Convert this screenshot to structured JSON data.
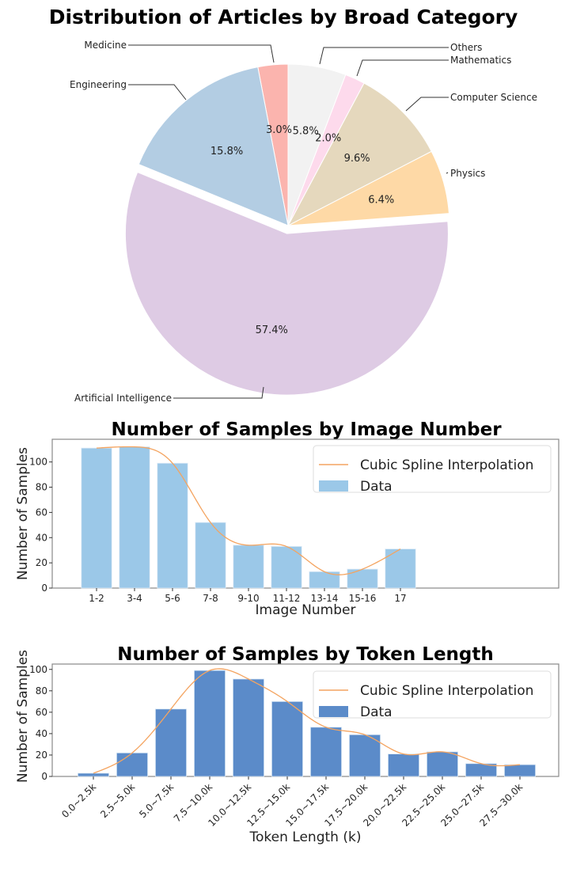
{
  "chart_data": [
    {
      "type": "pie",
      "title": "Distribution of Articles by Broad Category",
      "categories": [
        "Medicine",
        "Engineering",
        "Artificial Intelligence",
        "Physics",
        "Computer Science",
        "Mathematics",
        "Others"
      ],
      "values": [
        3.0,
        15.8,
        57.4,
        6.4,
        9.6,
        2.0,
        5.8
      ],
      "labels_pct": [
        "3.0%",
        "15.8%",
        "57.4%",
        "6.4%",
        "9.6%",
        "2.0%",
        "5.8%"
      ],
      "colors": [
        "#fbb4ae",
        "#b3cde3",
        "#decbe4",
        "#fed9a6",
        "#e5d8bd",
        "#fddaec",
        "#f2f2f2"
      ],
      "explode": [
        0,
        0,
        0.05,
        0,
        0,
        0,
        0
      ],
      "startangle": 90,
      "direction": "counterclockwise"
    },
    {
      "type": "bar",
      "title": "Number of Samples by Image Number",
      "categories": [
        "1-2",
        "3-4",
        "5-6",
        "7-8",
        "9-10",
        "11-12",
        "13-14",
        "15-16",
        "17"
      ],
      "values": [
        111,
        112,
        99,
        52,
        34,
        33,
        13,
        15,
        31
      ],
      "xlabel": "Image Number",
      "ylabel": "Number of Samples",
      "ylim": [
        0,
        118
      ],
      "yticks": [
        0,
        20,
        40,
        60,
        80,
        100
      ],
      "bar_color": "#9bc8e8",
      "line_color": "#f4a460",
      "legend": [
        "Cubic Spline Interpolation",
        "Data"
      ],
      "legend_position": "upper right",
      "grid": false
    },
    {
      "type": "bar",
      "title": "Number of Samples by Token Length",
      "categories": [
        "0.0~2.5k",
        "2.5~5.0k",
        "5.0~7.5k",
        "7.5~10.0k",
        "10.0~12.5k",
        "12.5~15.0k",
        "15.0~17.5k",
        "17.5~20.0k",
        "20.0~22.5k",
        "22.5~25.0k",
        "25.0~27.5k",
        "27.5~30.0k"
      ],
      "values": [
        3,
        22,
        63,
        99,
        91,
        70,
        46,
        39,
        21,
        23,
        12,
        11
      ],
      "xlabel": "Token Length (k)",
      "ylabel": "Number of Samples",
      "ylim": [
        0,
        105
      ],
      "yticks": [
        0,
        20,
        40,
        60,
        80,
        100
      ],
      "bar_color": "#5b8bc9",
      "line_color": "#f4a460",
      "legend": [
        "Cubic Spline Interpolation",
        "Data"
      ],
      "legend_position": "upper right",
      "grid": false
    }
  ]
}
